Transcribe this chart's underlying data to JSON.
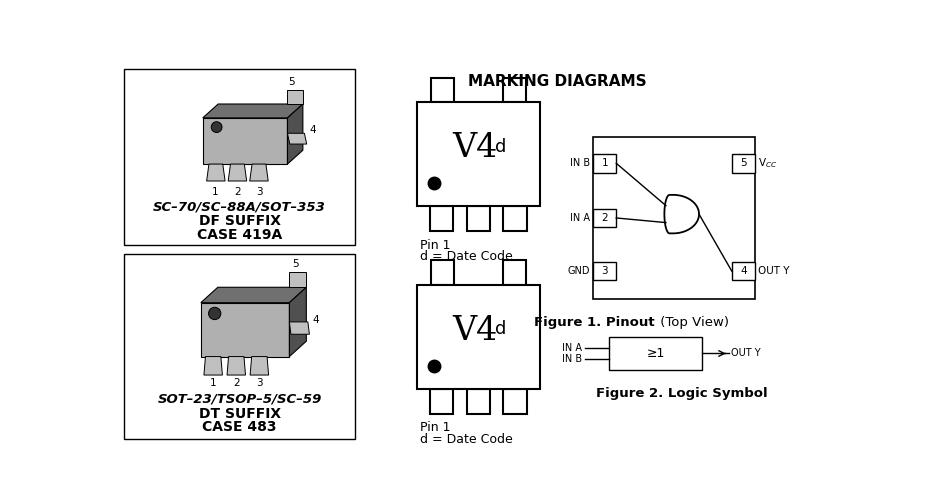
{
  "title": "MARKING DIAGRAMS",
  "bg_color": "#ffffff",
  "text_color": "#000000",
  "fig1_caption_bold": "Figure 1. Pinout",
  "fig1_caption_normal": " (Top View)",
  "fig2_caption": "Figure 2. Logic Symbol",
  "marking_text": "V4",
  "marking_superscript": "d",
  "pin1_label": "Pin 1",
  "date_code_label": "d = Date Code",
  "box1_text1": "SC–70/SC–88A/SOT–353",
  "box1_text2": "DF SUFFIX",
  "box1_text3": "CASE 419A",
  "box2_text1": "SOT–23/TSOP–5/SC–59",
  "box2_text2": "DT SUFFIX",
  "box2_text3": "CASE 483"
}
